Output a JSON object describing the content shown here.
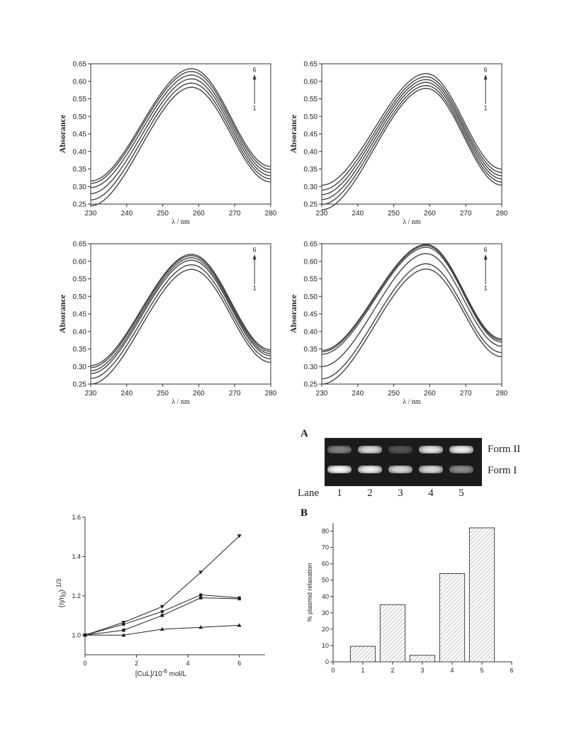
{
  "chart_data": [
    {
      "type": "line",
      "xlabel": "λ / nm",
      "ylabel": "Absorance",
      "xlim": [
        230,
        280
      ],
      "ylim": [
        0.25,
        0.65
      ],
      "x_ticks": [
        "230",
        "240",
        "250",
        "260",
        "270",
        "280"
      ],
      "y_ticks": [
        "0.25",
        "0.30",
        "0.35",
        "0.40",
        "0.45",
        "0.50",
        "0.55",
        "0.60",
        "0.65"
      ],
      "arrow_labels": {
        "top": "6",
        "bottom": "1"
      },
      "peak_x": 258,
      "series": [
        {
          "start": 0.245,
          "peak": 0.583,
          "end": 0.313
        },
        {
          "start": 0.262,
          "peak": 0.595,
          "end": 0.322
        },
        {
          "start": 0.28,
          "peak": 0.607,
          "end": 0.331
        },
        {
          "start": 0.297,
          "peak": 0.618,
          "end": 0.34
        },
        {
          "start": 0.309,
          "peak": 0.628,
          "end": 0.349
        },
        {
          "start": 0.316,
          "peak": 0.636,
          "end": 0.357
        }
      ]
    },
    {
      "type": "line",
      "xlabel": "λ / nm",
      "ylabel": "Absorance",
      "xlim": [
        230,
        280
      ],
      "ylim": [
        0.25,
        0.65
      ],
      "x_ticks": [
        "230",
        "240",
        "250",
        "260",
        "270",
        "280"
      ],
      "y_ticks": [
        "0.25",
        "0.30",
        "0.35",
        "0.40",
        "0.45",
        "0.50",
        "0.55",
        "0.60",
        "0.65"
      ],
      "arrow_labels": {
        "top": "6",
        "bottom": "1"
      },
      "peak_x": 259,
      "series": [
        {
          "start": 0.234,
          "peak": 0.58,
          "end": 0.304
        },
        {
          "start": 0.249,
          "peak": 0.588,
          "end": 0.313
        },
        {
          "start": 0.263,
          "peak": 0.597,
          "end": 0.322
        },
        {
          "start": 0.277,
          "peak": 0.605,
          "end": 0.331
        },
        {
          "start": 0.29,
          "peak": 0.613,
          "end": 0.34
        },
        {
          "start": 0.304,
          "peak": 0.622,
          "end": 0.35
        }
      ]
    },
    {
      "type": "line",
      "xlabel": "λ / nm",
      "ylabel": "Absorance",
      "xlim": [
        230,
        280
      ],
      "ylim": [
        0.25,
        0.65
      ],
      "x_ticks": [
        "230",
        "240",
        "250",
        "260",
        "270",
        "280"
      ],
      "y_ticks": [
        "0.25",
        "0.30",
        "0.35",
        "0.40",
        "0.45",
        "0.50",
        "0.55",
        "0.60",
        "0.65"
      ],
      "arrow_labels": {
        "top": "6",
        "bottom": "1"
      },
      "peak_x": 258,
      "series": [
        {
          "start": 0.25,
          "peak": 0.577,
          "end": 0.312
        },
        {
          "start": 0.266,
          "peak": 0.59,
          "end": 0.322
        },
        {
          "start": 0.28,
          "peak": 0.603,
          "end": 0.331
        },
        {
          "start": 0.288,
          "peak": 0.61,
          "end": 0.337
        },
        {
          "start": 0.297,
          "peak": 0.616,
          "end": 0.343
        },
        {
          "start": 0.303,
          "peak": 0.62,
          "end": 0.348
        }
      ]
    },
    {
      "type": "line",
      "xlabel": "λ / nm",
      "ylabel": "Absorance",
      "xlim": [
        230,
        280
      ],
      "ylim": [
        0.25,
        0.65
      ],
      "x_ticks": [
        "230",
        "240",
        "250",
        "260",
        "270",
        "280"
      ],
      "y_ticks": [
        "0.25",
        "0.30",
        "0.35",
        "0.40",
        "0.45",
        "0.50",
        "0.55",
        "0.60",
        "0.65"
      ],
      "arrow_labels": {
        "top": "6",
        "bottom": "1"
      },
      "peak_x": 259,
      "series": [
        {
          "start": 0.25,
          "peak": 0.578,
          "end": 0.328
        },
        {
          "start": 0.265,
          "peak": 0.593,
          "end": 0.34
        },
        {
          "start": 0.3,
          "peak": 0.622,
          "end": 0.358
        },
        {
          "start": 0.335,
          "peak": 0.64,
          "end": 0.37
        },
        {
          "start": 0.342,
          "peak": 0.645,
          "end": 0.375
        },
        {
          "start": 0.346,
          "peak": 0.648,
          "end": 0.379
        }
      ]
    },
    {
      "type": "line",
      "xlabel": "[CuL]/10",
      "xlabel_sup": "-6",
      "xlabel_tail": " mol/L",
      "ylabel": "(η/η",
      "ylabel_sub": "0",
      "ylabel_mid": ")",
      "ylabel_sup": "1/3",
      "xlim": [
        0,
        7
      ],
      "ylim": [
        0.9,
        1.6
      ],
      "x_ticks": [
        "0",
        "2",
        "4",
        "6"
      ],
      "y_ticks": [
        "1.0",
        "1.2",
        "1.4",
        "1.6"
      ],
      "series": [
        {
          "marker": "triangle-down",
          "x": [
            0,
            1.5,
            3,
            4.5,
            6
          ],
          "values": [
            1.0,
            1.065,
            1.145,
            1.32,
            1.505
          ]
        },
        {
          "marker": "circle",
          "x": [
            0,
            1.5,
            3,
            4.5,
            6
          ],
          "values": [
            1.0,
            1.055,
            1.12,
            1.205,
            1.19
          ]
        },
        {
          "marker": "square",
          "x": [
            0,
            1.5,
            3,
            4.5,
            6
          ],
          "values": [
            1.0,
            1.025,
            1.1,
            1.19,
            1.185
          ]
        },
        {
          "marker": "triangle-up",
          "x": [
            0,
            1.5,
            3,
            4.5,
            6
          ],
          "values": [
            1.0,
            1.0,
            1.03,
            1.04,
            1.05
          ]
        }
      ]
    },
    {
      "type": "bar",
      "panel_label": "B",
      "ylabel": "% plasmid relaxation",
      "xlim": [
        0,
        6
      ],
      "ylim": [
        0,
        85
      ],
      "x_ticks": [
        "0",
        "1",
        "2",
        "3",
        "4",
        "5",
        "6"
      ],
      "y_ticks": [
        "0",
        "10",
        "20",
        "30",
        "40",
        "50",
        "60",
        "70",
        "80"
      ],
      "categories": [
        "1",
        "2",
        "3",
        "4",
        "5"
      ],
      "x": [
        1,
        2,
        3,
        4,
        5
      ],
      "values": [
        9.5,
        35,
        4,
        54,
        82
      ]
    }
  ],
  "gel": {
    "panel_label": "A",
    "form_top": "Form II",
    "form_bottom": "Form I",
    "lane_label": "Lane",
    "lanes": [
      "1",
      "2",
      "3",
      "4",
      "5"
    ],
    "form2_intensity": [
      0.45,
      0.85,
      0.25,
      0.9,
      0.95
    ],
    "form1_intensity": [
      1.0,
      0.95,
      0.85,
      0.85,
      0.5
    ]
  }
}
